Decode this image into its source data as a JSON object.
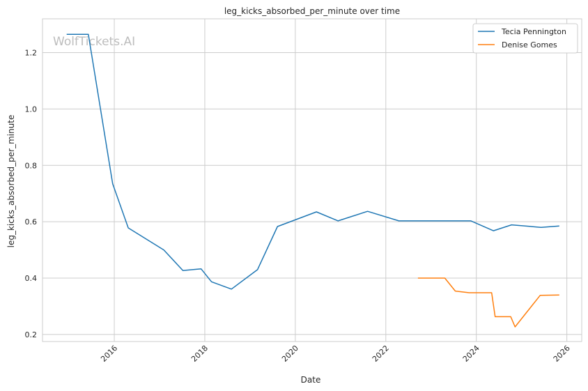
{
  "watermark": "WolfTickets.AI",
  "chart_data": {
    "type": "line",
    "title": "leg_kicks_absorbed_per_minute over time",
    "xlabel": "Date",
    "ylabel": "leg_kicks_absorbed_per_minute",
    "xlim": [
      "2014-06-01",
      "2026-05-01"
    ],
    "ylim": [
      0.175,
      1.32
    ],
    "x_ticks": [
      "2016",
      "2018",
      "2020",
      "2022",
      "2024",
      "2026"
    ],
    "y_ticks": [
      "0.2",
      "0.4",
      "0.6",
      "0.8",
      "1.0",
      "1.2"
    ],
    "grid": true,
    "legend_position": "top-right",
    "series": [
      {
        "name": "Tecia Pennington",
        "color": "#1f77b4",
        "points": [
          [
            "2014-12-13",
            1.265
          ],
          [
            "2015-06-06",
            1.265
          ],
          [
            "2015-12-19",
            0.735
          ],
          [
            "2016-04-23",
            0.578
          ],
          [
            "2017-02-04",
            0.5
          ],
          [
            "2017-07-08",
            0.427
          ],
          [
            "2017-12-02",
            0.433
          ],
          [
            "2018-02-24",
            0.387
          ],
          [
            "2018-08-04",
            0.361
          ],
          [
            "2019-03-02",
            0.43
          ],
          [
            "2019-08-10",
            0.583
          ],
          [
            "2020-06-20",
            0.635
          ],
          [
            "2020-12-12",
            0.603
          ],
          [
            "2021-08-07",
            0.637
          ],
          [
            "2022-04-16",
            0.603
          ],
          [
            "2023-11-18",
            0.603
          ],
          [
            "2024-05-18",
            0.568
          ],
          [
            "2024-10-12",
            0.589
          ],
          [
            "2025-06-07",
            0.58
          ],
          [
            "2025-11-01",
            0.585
          ]
        ]
      },
      {
        "name": "Denise Gomes",
        "color": "#ff7f0e",
        "points": [
          [
            "2022-09-17",
            0.4
          ],
          [
            "2023-04-22",
            0.4
          ],
          [
            "2023-07-15",
            0.354
          ],
          [
            "2023-11-04",
            0.348
          ],
          [
            "2024-05-04",
            0.348
          ],
          [
            "2024-06-01",
            0.263
          ],
          [
            "2024-10-05",
            0.263
          ],
          [
            "2024-11-09",
            0.227
          ],
          [
            "2025-05-31",
            0.339
          ],
          [
            "2025-11-01",
            0.34
          ]
        ]
      }
    ]
  }
}
